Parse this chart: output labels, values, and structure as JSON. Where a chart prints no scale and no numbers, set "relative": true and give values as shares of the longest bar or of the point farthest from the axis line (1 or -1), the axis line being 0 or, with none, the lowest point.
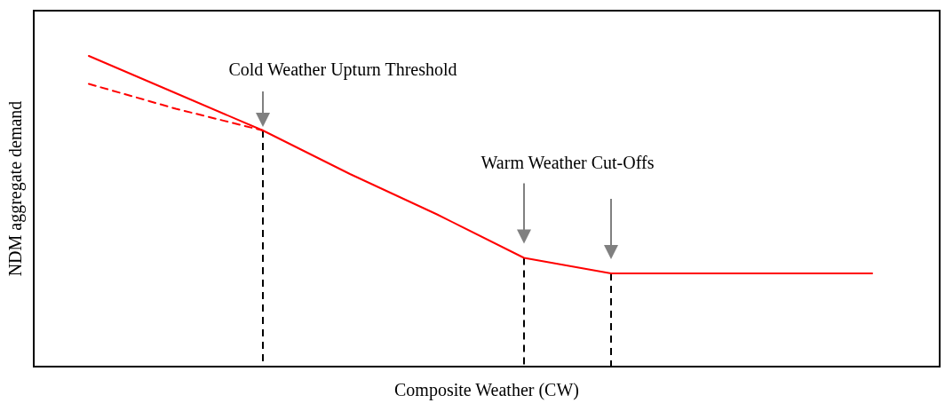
{
  "chart_data": {
    "type": "line",
    "relative": true,
    "xlabel": "Composite Weather (CW)",
    "ylabel": "NDM aggregate demand",
    "categories": [
      null,
      null,
      null,
      null,
      null,
      null,
      null,
      null,
      null,
      null
    ],
    "series": [
      {
        "color": "#ff0000",
        "values": [
          1,
          0.88,
          0.76,
          0.62,
          0.49,
          0.35,
          0.3,
          0.3,
          0.3,
          0.3
        ],
        "line_style": "solid"
      },
      {
        "color": "#ff0000",
        "values": [
          0.91,
          0.83,
          0.76,
          null,
          null,
          null,
          null,
          null,
          null,
          null
        ],
        "line_style": "dashed"
      }
    ],
    "annotations": [
      "Cold Weather Upturn Threshold",
      "Warm Weather Cut-Offs"
    ]
  }
}
